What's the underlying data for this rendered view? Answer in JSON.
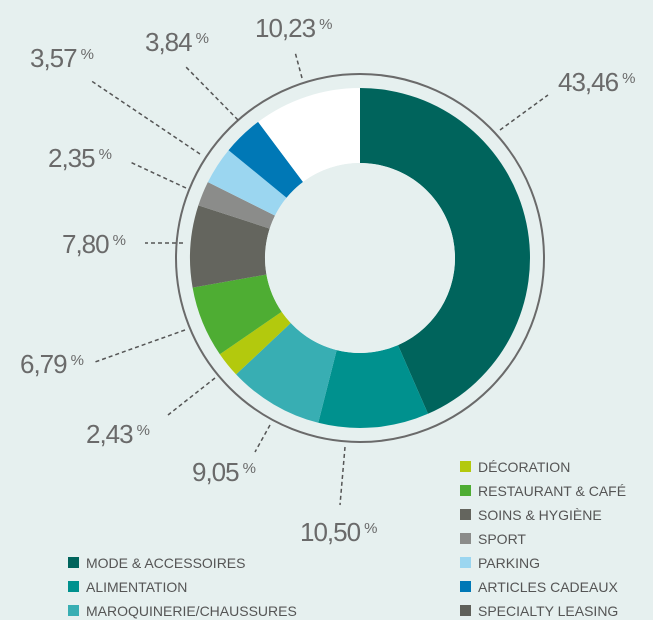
{
  "chart_data": {
    "type": "donut",
    "categories": [
      "MODE & ACCESSOIRES",
      "ALIMENTATION",
      "MAROQUINERIE/CHAUSSURES",
      "DÉCORATION",
      "RESTAURANT & CAFÉ",
      "SOINS & HYGIÈNE",
      "SPORT",
      "PARKING",
      "ARTICLES CADEAUX",
      "SPECIALTY LEASING"
    ],
    "values": [
      43.46,
      10.5,
      9.05,
      2.43,
      6.79,
      7.8,
      2.35,
      3.57,
      3.84,
      10.23
    ],
    "value_labels": [
      "43,46",
      "10,50",
      "9,05",
      "2,43",
      "6,79",
      "7,80",
      "2,35",
      "3,57",
      "3,84",
      "10,23"
    ],
    "unit": "%",
    "colors": [
      "#00645c",
      "#00918e",
      "#38aeb3",
      "#b3c90d",
      "#4ead33",
      "#64655e",
      "#8b8c8a",
      "#9bd6f0",
      "#0078b6",
      "#ffffff"
    ],
    "legend_colors": [
      "#00645c",
      "#00918e",
      "#38aeb3",
      "#b3c90d",
      "#4ead33",
      "#64655e",
      "#8b8c8a",
      "#9bd6f0",
      "#0078b6",
      "#5f605a"
    ]
  }
}
